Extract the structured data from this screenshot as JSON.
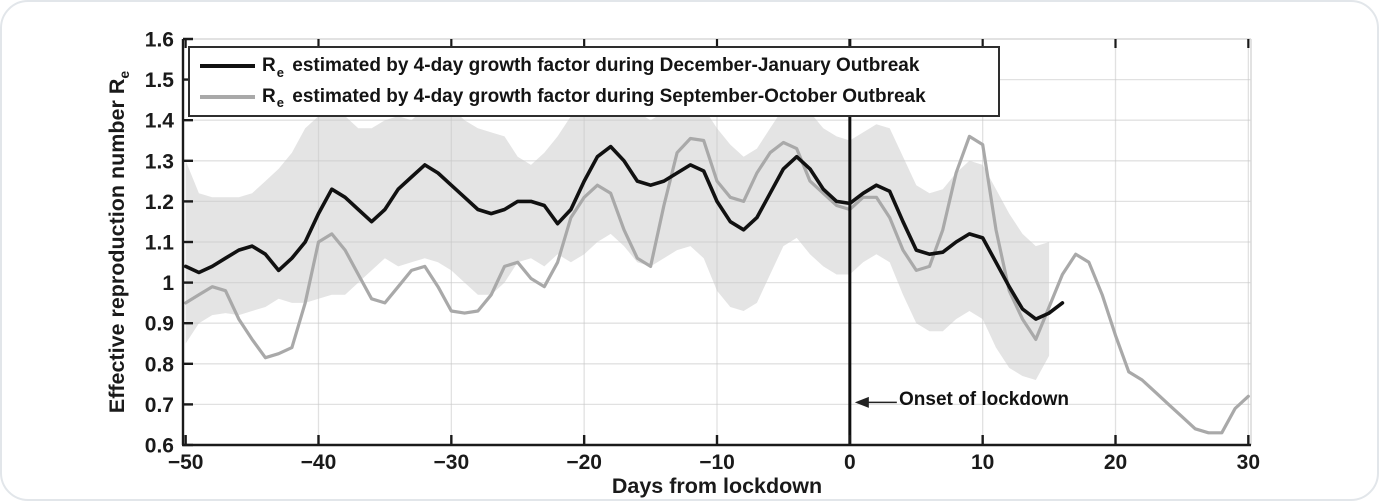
{
  "figure": {
    "background": "#ffffff",
    "card_border": "#e2e6ea"
  },
  "chart_data": {
    "type": "line",
    "title": "",
    "xlabel": "Days from lockdown",
    "ylabel": "Effective reproduction number Re",
    "ylabel_main": "Effective reproduction number R",
    "ylabel_sub": "e",
    "xlim": [
      -50.2,
      30.2
    ],
    "ylim": [
      0.6,
      1.6
    ],
    "grid": "on",
    "legend_position": "top-left",
    "x_ticks": [
      {
        "v": -50,
        "label": "−50"
      },
      {
        "v": -40,
        "label": "−40"
      },
      {
        "v": -30,
        "label": "−30"
      },
      {
        "v": -20,
        "label": "−20"
      },
      {
        "v": -10,
        "label": "−10"
      },
      {
        "v": 0,
        "label": "0"
      },
      {
        "v": 10,
        "label": "10"
      },
      {
        "v": 20,
        "label": "20"
      },
      {
        "v": 30,
        "label": "30"
      }
    ],
    "y_ticks": [
      {
        "v": 0.6,
        "label": "0.6"
      },
      {
        "v": 0.7,
        "label": "0.7"
      },
      {
        "v": 0.8,
        "label": "0.8"
      },
      {
        "v": 0.9,
        "label": "0.9"
      },
      {
        "v": 1.0,
        "label": "1"
      },
      {
        "v": 1.1,
        "label": "1.1"
      },
      {
        "v": 1.2,
        "label": "1.2"
      },
      {
        "v": 1.3,
        "label": "1.3"
      },
      {
        "v": 1.4,
        "label": "1.4"
      },
      {
        "v": 1.5,
        "label": "1.5"
      },
      {
        "v": 1.6,
        "label": "1.6"
      }
    ],
    "colors": {
      "black_line": "#111111",
      "gray_line": "#a9a9a9",
      "band": "#e4e4e4",
      "grid": "#c9c9c9",
      "axis": "#1a1a1a",
      "box_light": "#d8d8d8",
      "text": "#1a1a1a"
    },
    "band": {
      "x": [
        -50,
        -49,
        -48,
        -47,
        -46,
        -45,
        -44,
        -43,
        -42,
        -41,
        -40,
        -39,
        -38,
        -37,
        -36,
        -35,
        -34,
        -33,
        -32,
        -31,
        -30,
        -29,
        -28,
        -27,
        -26,
        -25,
        -24,
        -23,
        -22,
        -21,
        -20,
        -19,
        -18,
        -17,
        -16,
        -15,
        -14,
        -13,
        -12,
        -11,
        -10,
        -9,
        -8,
        -7,
        -6,
        -5,
        -4,
        -3,
        -2,
        -1,
        0,
        1,
        2,
        3,
        4,
        5,
        6,
        7,
        8,
        9,
        10,
        11,
        12,
        13,
        14,
        15
      ],
      "upper": [
        1.3,
        1.22,
        1.21,
        1.21,
        1.21,
        1.22,
        1.25,
        1.28,
        1.32,
        1.38,
        1.41,
        1.43,
        1.41,
        1.38,
        1.38,
        1.4,
        1.41,
        1.4,
        1.43,
        1.44,
        1.43,
        1.4,
        1.38,
        1.37,
        1.36,
        1.31,
        1.29,
        1.32,
        1.36,
        1.41,
        1.44,
        1.46,
        1.46,
        1.44,
        1.42,
        1.4,
        1.42,
        1.43,
        1.44,
        1.43,
        1.38,
        1.34,
        1.31,
        1.33,
        1.38,
        1.43,
        1.45,
        1.42,
        1.38,
        1.36,
        1.35,
        1.37,
        1.39,
        1.38,
        1.31,
        1.24,
        1.22,
        1.23,
        1.27,
        1.3,
        1.29,
        1.23,
        1.17,
        1.12,
        1.09,
        1.1
      ],
      "lower": [
        0.85,
        0.9,
        0.92,
        0.925,
        0.92,
        0.93,
        0.94,
        0.96,
        0.95,
        0.95,
        0.96,
        0.97,
        0.97,
        1.0,
        1.03,
        1.06,
        1.04,
        1.05,
        1.06,
        1.05,
        1.03,
        1.0,
        0.97,
        0.97,
        1.0,
        1.05,
        1.06,
        1.04,
        1.07,
        1.05,
        1.07,
        1.1,
        1.12,
        1.09,
        1.05,
        1.04,
        1.06,
        1.08,
        1.09,
        1.06,
        0.98,
        0.94,
        0.93,
        0.95,
        1.02,
        1.09,
        1.11,
        1.07,
        1.04,
        1.02,
        1.02,
        1.05,
        1.07,
        1.05,
        0.97,
        0.9,
        0.88,
        0.88,
        0.91,
        0.93,
        0.91,
        0.84,
        0.79,
        0.77,
        0.76,
        0.82
      ]
    },
    "series": [
      {
        "name": "Re estimated by 4-day growth factor during December-January Outbreak",
        "color": "#111111",
        "width": 3.6,
        "x": [
          -50,
          -49,
          -48,
          -47,
          -46,
          -45,
          -44,
          -43,
          -42,
          -41,
          -40,
          -39,
          -38,
          -37,
          -36,
          -35,
          -34,
          -33,
          -32,
          -31,
          -30,
          -29,
          -28,
          -27,
          -26,
          -25,
          -24,
          -23,
          -22,
          -21,
          -20,
          -19,
          -18,
          -17,
          -16,
          -15,
          -14,
          -13,
          -12,
          -11,
          -10,
          -9,
          -8,
          -7,
          -6,
          -5,
          -4,
          -3,
          -2,
          -1,
          0,
          1,
          2,
          3,
          4,
          5,
          6,
          7,
          8,
          9,
          10,
          11,
          12,
          13,
          14,
          15,
          16
        ],
        "values": [
          1.04,
          1.025,
          1.04,
          1.06,
          1.08,
          1.09,
          1.07,
          1.03,
          1.06,
          1.1,
          1.17,
          1.23,
          1.21,
          1.18,
          1.15,
          1.18,
          1.23,
          1.26,
          1.29,
          1.27,
          1.24,
          1.21,
          1.18,
          1.17,
          1.18,
          1.2,
          1.2,
          1.19,
          1.145,
          1.18,
          1.25,
          1.31,
          1.335,
          1.3,
          1.25,
          1.24,
          1.25,
          1.27,
          1.29,
          1.275,
          1.2,
          1.15,
          1.13,
          1.16,
          1.22,
          1.28,
          1.31,
          1.28,
          1.23,
          1.2,
          1.195,
          1.22,
          1.24,
          1.225,
          1.15,
          1.08,
          1.07,
          1.075,
          1.1,
          1.12,
          1.11,
          1.05,
          0.99,
          0.935,
          0.91,
          0.925,
          0.95
        ]
      },
      {
        "name": "Re estimated by 4-day growth factor during September-October Outbreak",
        "color": "#a9a9a9",
        "width": 3.2,
        "x": [
          -50,
          -49,
          -48,
          -47,
          -46,
          -45,
          -44,
          -43,
          -42,
          -41,
          -40,
          -39,
          -38,
          -37,
          -36,
          -35,
          -34,
          -33,
          -32,
          -31,
          -30,
          -29,
          -28,
          -27,
          -26,
          -25,
          -24,
          -23,
          -22,
          -21,
          -20,
          -19,
          -18,
          -17,
          -16,
          -15,
          -14,
          -13,
          -12,
          -11,
          -10,
          -9,
          -8,
          -7,
          -6,
          -5,
          -4,
          -3,
          -2,
          -1,
          0,
          1,
          2,
          3,
          4,
          5,
          6,
          7,
          8,
          9,
          10,
          11,
          12,
          13,
          14,
          15,
          16,
          17,
          18,
          19,
          20,
          21,
          22,
          23,
          24,
          25,
          26,
          27,
          28,
          29,
          30
        ],
        "values": [
          0.95,
          0.97,
          0.99,
          0.98,
          0.91,
          0.86,
          0.815,
          0.825,
          0.84,
          0.95,
          1.1,
          1.12,
          1.08,
          1.02,
          0.96,
          0.95,
          0.99,
          1.03,
          1.04,
          0.99,
          0.93,
          0.925,
          0.93,
          0.97,
          1.04,
          1.05,
          1.01,
          0.99,
          1.05,
          1.16,
          1.21,
          1.24,
          1.22,
          1.13,
          1.06,
          1.04,
          1.19,
          1.32,
          1.355,
          1.35,
          1.25,
          1.21,
          1.2,
          1.27,
          1.32,
          1.345,
          1.33,
          1.25,
          1.22,
          1.19,
          1.18,
          1.21,
          1.21,
          1.16,
          1.08,
          1.03,
          1.04,
          1.13,
          1.27,
          1.36,
          1.34,
          1.13,
          0.98,
          0.91,
          0.86,
          0.94,
          1.02,
          1.07,
          1.05,
          0.97,
          0.87,
          0.78,
          0.76,
          0.73,
          0.7,
          0.67,
          0.64,
          0.63,
          0.63,
          0.69,
          0.72
        ]
      }
    ],
    "event_line": {
      "x": 0
    },
    "annotation": {
      "text": "Onset of lockdown",
      "x": 0,
      "y": 0.705
    }
  },
  "legend": {
    "entries": [
      {
        "r": "R",
        "sub": "e",
        "rest": "estimated by 4-day growth factor during December-January Outbreak",
        "color": "#111111"
      },
      {
        "r": "R",
        "sub": "e",
        "rest": "estimated by 4-day growth factor during September-October Outbreak",
        "color": "#a9a9a9"
      }
    ]
  }
}
